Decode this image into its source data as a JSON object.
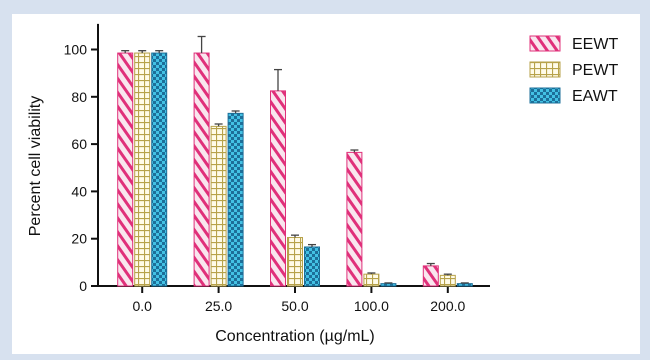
{
  "chart_data": {
    "type": "bar",
    "title": "",
    "xlabel": "Concentration (µg/mL)",
    "ylabel": "Percent cell viability",
    "categories": [
      "0.0",
      "25.0",
      "50.0",
      "100.0",
      "200.0"
    ],
    "ylim": [
      0,
      110
    ],
    "yticks": [
      "0",
      "20",
      "40",
      "60",
      "80",
      "100"
    ],
    "grid": false,
    "legend_position": "right",
    "series": [
      {
        "name": "EEWT",
        "pattern": "diagonal-hatch",
        "color": "#e0307a",
        "fill": "#f9e6ee",
        "values": [
          98.5,
          98.5,
          82.5,
          56.5,
          8.5
        ],
        "errors": [
          1,
          7,
          9,
          1,
          1
        ]
      },
      {
        "name": "PEWT",
        "pattern": "grid",
        "color": "#b7a24a",
        "fill": "#fffbe8",
        "values": [
          98.5,
          67.5,
          20.5,
          5,
          4.5
        ],
        "errors": [
          1,
          1,
          1,
          0.5,
          0.5
        ]
      },
      {
        "name": "EAWT",
        "pattern": "checker",
        "color": "#1d6f99",
        "fill": "#43c1e4",
        "values": [
          98.5,
          73,
          16.5,
          1,
          1
        ],
        "errors": [
          1,
          1,
          1,
          0.3,
          0.3
        ]
      }
    ]
  }
}
